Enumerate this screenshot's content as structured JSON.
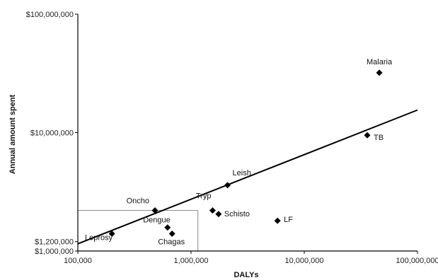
{
  "chart_data": {
    "type": "scatter",
    "title": "",
    "xlabel": "DALYs",
    "ylabel": "Annual amount spent",
    "x_scale": "log",
    "y_scale": "log",
    "xlim": [
      100000,
      100000000
    ],
    "ylim": [
      1000000,
      100000000
    ],
    "x_ticks": [
      {
        "value": 100000,
        "label": "100,000"
      },
      {
        "value": 1000000,
        "label": "1,000,000"
      },
      {
        "value": 10000000,
        "label": "10,000,000"
      },
      {
        "value": 100000000,
        "label": "100,000,000"
      }
    ],
    "y_ticks": [
      {
        "value": 1000000,
        "label": "$1,000,000"
      },
      {
        "value": 1200000,
        "label": "$1,200,000"
      },
      {
        "value": 10000000,
        "label": "$10,000,000"
      },
      {
        "value": 100000000,
        "label": "$100,000,000"
      }
    ],
    "grid": false,
    "legend": "none",
    "marker_color": "#000000",
    "points": [
      {
        "label": "Malaria",
        "x": 46000000,
        "y": 32000000
      },
      {
        "label": "TB",
        "x": 36000000,
        "y": 9500000
      },
      {
        "label": "Leish",
        "x": 2100000,
        "y": 3600000
      },
      {
        "label": "Oncho",
        "x": 480000,
        "y": 2200000
      },
      {
        "label": "Tryp",
        "x": 1550000,
        "y": 2200000
      },
      {
        "label": "Schisto",
        "x": 1750000,
        "y": 2050000
      },
      {
        "label": "LF",
        "x": 5800000,
        "y": 1800000
      },
      {
        "label": "Dengue",
        "x": 620000,
        "y": 1580000
      },
      {
        "label": "Chagas",
        "x": 680000,
        "y": 1400000
      },
      {
        "label": "Leprosy",
        "x": 200000,
        "y": 1400000
      }
    ],
    "trend_line": {
      "x": [
        100000,
        100000000
      ],
      "y": [
        1150000,
        15500000
      ]
    },
    "reference_lines": {
      "x": 1150000,
      "y": 2200000
    }
  }
}
